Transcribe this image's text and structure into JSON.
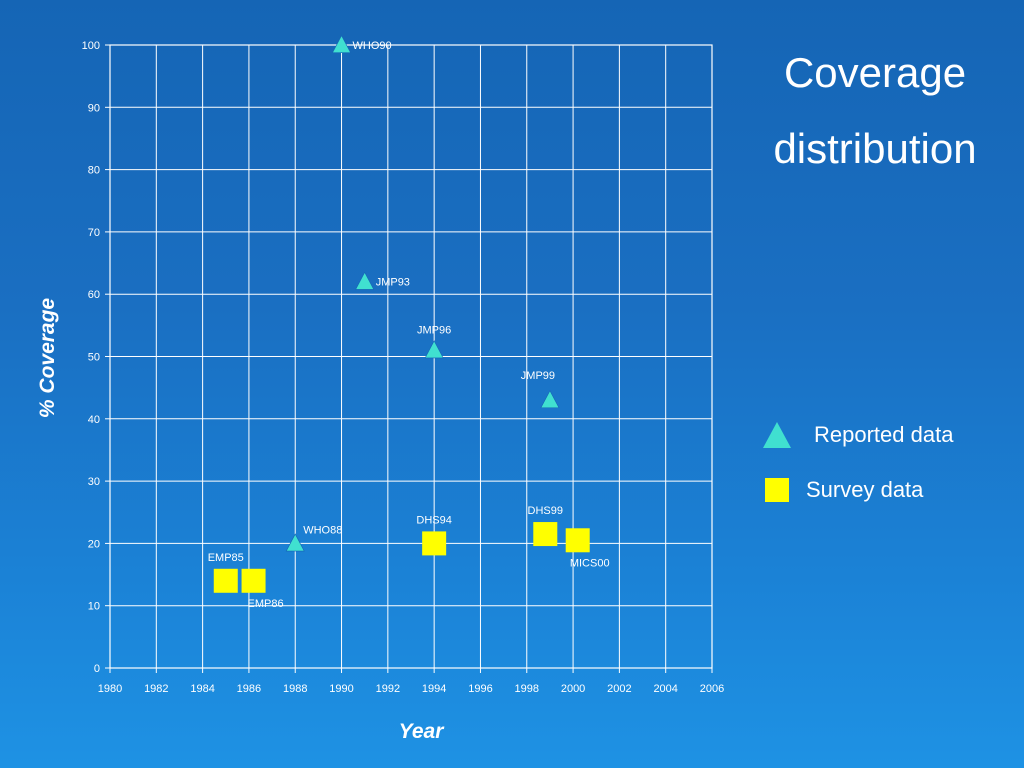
{
  "slide": {
    "title_line1": "Coverage",
    "title_line2": "distribution",
    "colors": {
      "background_top": "#1565b5",
      "background_bottom": "#1e92e4",
      "reported_marker": "#40e0d0",
      "survey_marker": "#ffff00",
      "grid": "#ffffff"
    }
  },
  "legend": [
    {
      "label": "Reported data",
      "marker": "triangle",
      "color": "#40e0d0"
    },
    {
      "label": "Survey data",
      "marker": "square",
      "color": "#ffff00"
    }
  ],
  "chart_data": {
    "type": "scatter",
    "title": "Coverage distribution",
    "xlabel": "Year",
    "ylabel": "% Coverage",
    "xlim": [
      1980,
      2006
    ],
    "ylim": [
      0,
      100
    ],
    "x_ticks": [
      1980,
      1982,
      1984,
      1986,
      1988,
      1990,
      1992,
      1994,
      1996,
      1998,
      2000,
      2002,
      2004,
      2006
    ],
    "y_ticks": [
      0,
      10,
      20,
      30,
      40,
      50,
      60,
      70,
      80,
      90,
      100
    ],
    "grid": true,
    "legend_position": "right",
    "series": [
      {
        "name": "Reported data",
        "marker": "triangle",
        "color": "#40e0d0",
        "points": [
          {
            "x": 1988,
            "y": 20,
            "label": "WHO88",
            "label_side": "upper-right"
          },
          {
            "x": 1990,
            "y": 100,
            "label": "WHO90",
            "label_side": "right"
          },
          {
            "x": 1991,
            "y": 62,
            "label": "JMP93",
            "label_side": "right"
          },
          {
            "x": 1994,
            "y": 51,
            "label": "JMP96",
            "label_side": "above"
          },
          {
            "x": 1999,
            "y": 43,
            "label": "JMP99",
            "label_side": "above-left"
          }
        ]
      },
      {
        "name": "Survey data",
        "marker": "square",
        "color": "#ffff00",
        "points": [
          {
            "x": 1985,
            "y": 14,
            "label": "EMP85",
            "label_side": "above"
          },
          {
            "x": 1986.2,
            "y": 14,
            "label": "EMP86",
            "label_side": "below"
          },
          {
            "x": 1994,
            "y": 20,
            "label": "DHS94",
            "label_side": "above"
          },
          {
            "x": 1998.8,
            "y": 21.5,
            "label": "DHS99",
            "label_side": "above"
          },
          {
            "x": 2000.2,
            "y": 20.5,
            "label": "MICS00",
            "label_side": "below"
          }
        ]
      }
    ]
  }
}
